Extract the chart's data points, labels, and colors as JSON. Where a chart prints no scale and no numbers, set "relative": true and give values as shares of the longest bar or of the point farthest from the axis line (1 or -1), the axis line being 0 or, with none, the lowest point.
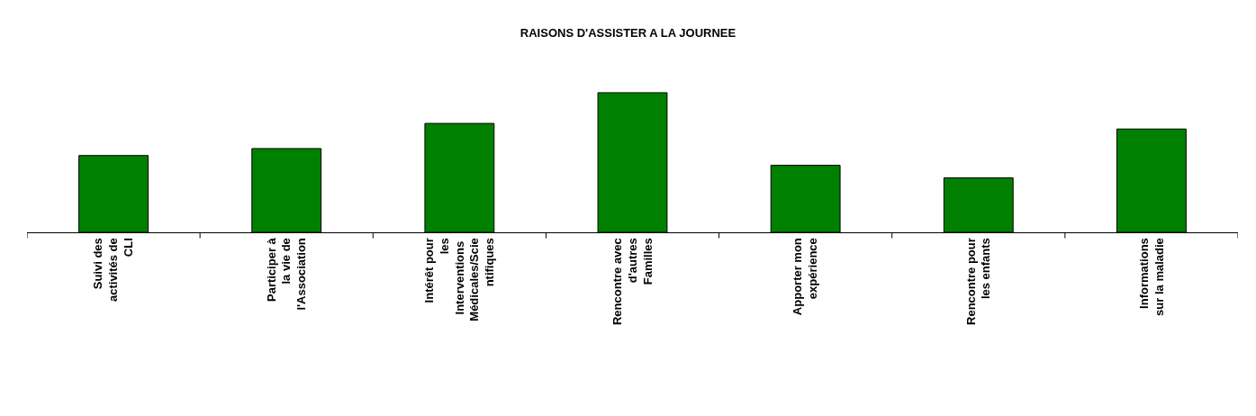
{
  "chart_data": {
    "type": "bar",
    "title": "RAISONS D'ASSISTER A LA JOURNEE",
    "relative": true,
    "categories": [
      "Suivi des activités de CLI",
      "Participer à la vie de l'Association",
      "Intérêt pour les Interventions Médicales/Scientifiques",
      "Rencontre avec d'autres Familles",
      "Apporter mon expérience",
      "Rencontre pour les enfants",
      "Informations sur la maladie"
    ],
    "values": [
      0.55,
      0.6,
      0.78,
      1,
      0.48,
      0.39,
      0.74
    ],
    "color": "#008000"
  }
}
